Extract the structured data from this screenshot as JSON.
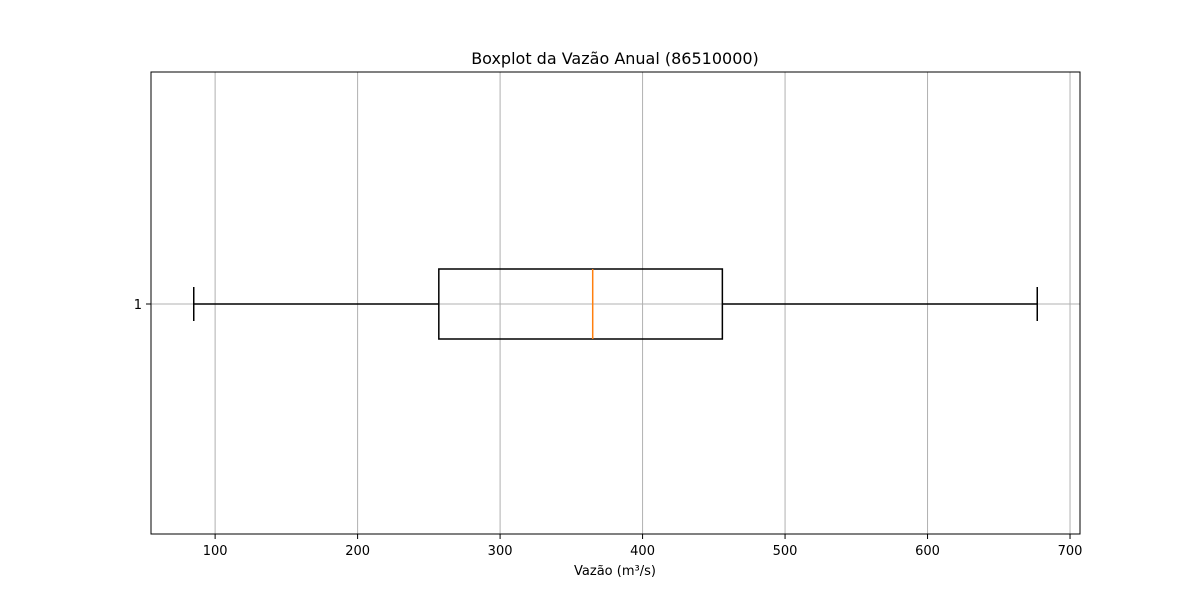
{
  "chart_data": {
    "type": "boxplot",
    "title": "Boxplot da Vazão Anual (86510000)",
    "xlabel": "Vazão (m³/s)",
    "ylabel": "",
    "orientation": "horizontal",
    "xlim": [
      55,
      707
    ],
    "x_ticks": [
      100,
      200,
      300,
      400,
      500,
      600,
      700
    ],
    "y_ticks": [
      "1"
    ],
    "grid": true,
    "colors": {
      "box": "#000000",
      "median": "#ff7f0e",
      "grid": "#b0b0b0"
    },
    "boxes": [
      {
        "label": "1",
        "whisker_low": 85,
        "q1": 257,
        "median": 365,
        "q3": 456,
        "whisker_high": 677
      }
    ]
  }
}
